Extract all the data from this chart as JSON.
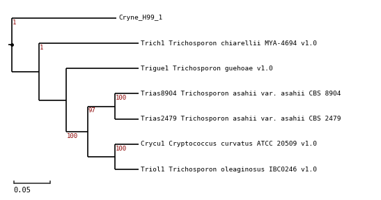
{
  "taxa": [
    "Triol1 Trichosporon oleaginosus IBC0246 v1.0",
    "Crycu1 Cryptococcus curvatus ATCC 20509 v1.0",
    "Trias2479 Trichosporon asahii var. asahii CBS 2479",
    "Trias8904 Trichosporon asahii var. asahii CBS 8904",
    "Trigue1 Trichosporon guehoae v1.0",
    "Trich1 Trichosporon chiarellii MYA-4694 v1.0",
    "Cryne_H99_1"
  ],
  "bg_color": "#ffffff",
  "line_color": "#000000",
  "bootstrap_color": "#8b0000",
  "label_fontsize": 6.8,
  "bootstrap_fontsize": 6.5,
  "scale_bar_value": "0.05",
  "scale_bar_unit": 0.05
}
